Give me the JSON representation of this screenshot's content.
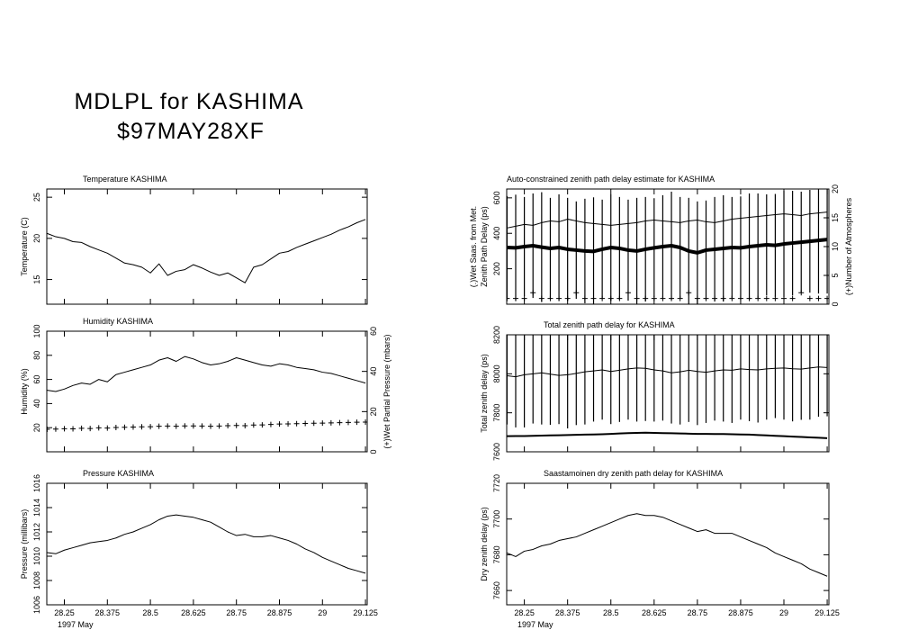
{
  "header": {
    "title": "MDLPL for KASHIMA",
    "subtitle": "$97MAY28XF"
  },
  "chart_data": [
    {
      "type": "line",
      "title": "Temperature    KASHIMA",
      "ylabel": [
        "Temperature (C)"
      ],
      "x": [
        28.2,
        28.225,
        28.25,
        28.275,
        28.3,
        28.325,
        28.35,
        28.375,
        28.4,
        28.425,
        28.45,
        28.475,
        28.5,
        28.525,
        28.55,
        28.575,
        28.6,
        28.625,
        28.65,
        28.675,
        28.7,
        28.725,
        28.75,
        28.775,
        28.8,
        28.825,
        28.85,
        28.875,
        28.9,
        28.925,
        28.95,
        28.975,
        29,
        29.025,
        29.05,
        29.075,
        29.1,
        29.125
      ],
      "xlim": [
        28.199,
        29.13
      ],
      "xticks": [
        28.25,
        28.375,
        28.5,
        28.625,
        28.75,
        28.875,
        29,
        29.125
      ],
      "ylim": [
        12,
        26
      ],
      "yticks": [
        15,
        20,
        25
      ],
      "series": [
        {
          "style": "line",
          "color": "#000000",
          "values": [
            20.6,
            20.2,
            20.0,
            19.6,
            19.5,
            19.0,
            18.6,
            18.2,
            17.6,
            17.0,
            16.8,
            16.5,
            15.8,
            16.9,
            15.5,
            16.0,
            16.2,
            16.8,
            16.4,
            15.9,
            15.5,
            15.8,
            15.2,
            14.6,
            16.5,
            16.8,
            17.5,
            18.2,
            18.4,
            18.9,
            19.3,
            19.7,
            20.1,
            20.5,
            21.0,
            21.4,
            21.9,
            22.3
          ]
        }
      ]
    },
    {
      "type": "line",
      "title": "Humidity     KASHIMA",
      "ylabel": [
        "Humidity (%)"
      ],
      "y2label": "(+)Wet Partial Pressure (mbars)",
      "x": [
        28.2,
        28.225,
        28.25,
        28.275,
        28.3,
        28.325,
        28.35,
        28.375,
        28.4,
        28.425,
        28.45,
        28.475,
        28.5,
        28.525,
        28.55,
        28.575,
        28.6,
        28.625,
        28.65,
        28.675,
        28.7,
        28.725,
        28.75,
        28.775,
        28.8,
        28.825,
        28.85,
        28.875,
        28.9,
        28.925,
        28.95,
        28.975,
        29,
        29.025,
        29.05,
        29.075,
        29.1,
        29.125
      ],
      "xlim": [
        28.199,
        29.13
      ],
      "xticks": [
        28.25,
        28.375,
        28.5,
        28.625,
        28.75,
        28.875,
        29,
        29.125
      ],
      "ylim": [
        0,
        100
      ],
      "yticks": [
        20,
        40,
        60,
        80,
        100
      ],
      "y2lim": [
        0,
        60
      ],
      "y2ticks": [
        0,
        20,
        40,
        60
      ],
      "series": [
        {
          "style": "line",
          "color": "#000000",
          "values": [
            51,
            50,
            52,
            55,
            57,
            56,
            60,
            58,
            64,
            66,
            68,
            70,
            72,
            76,
            78,
            75,
            79,
            77,
            74,
            72,
            73,
            75,
            78,
            76,
            74,
            72,
            71,
            73,
            72,
            70,
            69,
            68,
            66,
            65,
            63,
            61,
            59,
            57
          ]
        },
        {
          "style": "plus",
          "color": "#000000",
          "axis": "y2",
          "values": [
            11.2,
            11.3,
            11.5,
            11.4,
            11.7,
            11.6,
            11.9,
            11.8,
            12.1,
            12.2,
            12.3,
            12.4,
            12.5,
            12.7,
            12.8,
            12.7,
            12.9,
            12.9,
            12.8,
            12.7,
            12.8,
            13.0,
            13.1,
            13.0,
            13.3,
            13.4,
            13.6,
            13.8,
            13.9,
            14.0,
            14.1,
            14.2,
            14.3,
            14.4,
            14.5,
            14.6,
            14.7,
            14.8
          ]
        }
      ]
    },
    {
      "type": "line",
      "title": "Pressure     KASHIMA",
      "ylabel": [
        "Pressure (millibars)"
      ],
      "xlabel": "1997 May",
      "xtick_labels": true,
      "x": [
        28.2,
        28.225,
        28.25,
        28.275,
        28.3,
        28.325,
        28.35,
        28.375,
        28.4,
        28.425,
        28.45,
        28.475,
        28.5,
        28.525,
        28.55,
        28.575,
        28.6,
        28.625,
        28.65,
        28.675,
        28.7,
        28.725,
        28.75,
        28.775,
        28.8,
        28.825,
        28.85,
        28.875,
        28.9,
        28.925,
        28.95,
        28.975,
        29,
        29.025,
        29.05,
        29.075,
        29.1,
        29.125
      ],
      "xlim": [
        28.199,
        29.13
      ],
      "xticks": [
        28.25,
        28.375,
        28.5,
        28.625,
        28.75,
        28.875,
        29,
        29.125
      ],
      "ylim": [
        1006,
        1016
      ],
      "yticks": [
        1006,
        1008,
        1010,
        1012,
        1014,
        1016
      ],
      "series": [
        {
          "style": "line",
          "color": "#000000",
          "values": [
            1010.3,
            1010.2,
            1010.5,
            1010.7,
            1010.9,
            1011.1,
            1011.2,
            1011.3,
            1011.5,
            1011.8,
            1012.0,
            1012.3,
            1012.6,
            1013.0,
            1013.3,
            1013.4,
            1013.3,
            1013.2,
            1013.0,
            1012.8,
            1012.4,
            1012.0,
            1011.7,
            1011.8,
            1011.6,
            1011.6,
            1011.7,
            1011.5,
            1011.3,
            1011.0,
            1010.6,
            1010.3,
            1009.9,
            1009.6,
            1009.3,
            1009.0,
            1008.8,
            1008.6
          ]
        }
      ]
    },
    {
      "type": "line",
      "title": "Auto-constrained zenith path delay estimate for KASHIMA",
      "ylabel": [
        "(.)Wet Saas. from Met.",
        "Zenith Path Delay (ps)"
      ],
      "y2label": "(+)Number of Atmospheres",
      "x": [
        28.2,
        28.225,
        28.25,
        28.275,
        28.3,
        28.325,
        28.35,
        28.375,
        28.4,
        28.425,
        28.45,
        28.475,
        28.5,
        28.525,
        28.55,
        28.575,
        28.6,
        28.625,
        28.65,
        28.675,
        28.7,
        28.725,
        28.75,
        28.775,
        28.8,
        28.825,
        28.85,
        28.875,
        28.9,
        28.925,
        28.95,
        28.975,
        29,
        29.025,
        29.05,
        29.075,
        29.1,
        29.125
      ],
      "xlim": [
        28.199,
        29.13
      ],
      "xticks": [
        28.25,
        28.375,
        28.5,
        28.625,
        28.75,
        28.875,
        29,
        29.125
      ],
      "ylim": [
        0,
        650
      ],
      "yticks": [
        200,
        400,
        600
      ],
      "y2lim": [
        0,
        20
      ],
      "y2ticks": [
        0,
        5,
        10,
        15,
        20
      ],
      "series": [
        {
          "style": "errorbar",
          "color": "#000000",
          "linewidth": 4,
          "values": [
            320,
            318,
            325,
            330,
            322,
            315,
            320,
            310,
            305,
            300,
            298,
            310,
            320,
            315,
            305,
            300,
            310,
            318,
            325,
            330,
            320,
            300,
            290,
            305,
            310,
            315,
            320,
            318,
            325,
            330,
            335,
            332,
            340,
            345,
            350,
            355,
            360,
            365
          ],
          "errors": [
            290,
            300,
            280,
            295,
            310,
            285,
            300,
            290,
            275,
            295,
            305,
            280,
            300,
            290,
            285,
            300,
            295,
            280,
            290,
            305,
            285,
            300,
            290,
            280,
            295,
            300,
            285,
            290,
            300,
            295,
            285,
            290,
            300,
            295,
            285,
            290,
            300,
            305
          ]
        },
        {
          "style": "line",
          "color": "#000000",
          "linewidth": 1,
          "values": [
            430,
            440,
            450,
            445,
            460,
            470,
            465,
            480,
            470,
            460,
            455,
            450,
            445,
            450,
            455,
            460,
            470,
            475,
            470,
            465,
            460,
            470,
            475,
            465,
            460,
            470,
            480,
            485,
            490,
            495,
            500,
            505,
            510,
            505,
            500,
            510,
            515,
            520
          ]
        },
        {
          "style": "plus",
          "color": "#000000",
          "axis": "y2",
          "values": [
            1,
            1,
            1,
            2,
            1,
            1,
            1,
            1,
            2,
            1,
            1,
            1,
            1,
            1,
            2,
            1,
            1,
            1,
            1,
            1,
            1,
            2,
            1,
            1,
            1,
            1,
            1,
            1,
            1,
            1,
            1,
            1,
            1,
            1,
            2,
            1,
            1,
            1
          ]
        }
      ]
    },
    {
      "type": "line",
      "title": "Total zenith path delay for KASHIMA",
      "ylabel": [
        "Total zenith delay (ps)"
      ],
      "x": [
        28.2,
        28.225,
        28.25,
        28.275,
        28.3,
        28.325,
        28.35,
        28.375,
        28.4,
        28.425,
        28.45,
        28.475,
        28.5,
        28.525,
        28.55,
        28.575,
        28.6,
        28.625,
        28.65,
        28.675,
        28.7,
        28.725,
        28.75,
        28.775,
        28.8,
        28.825,
        28.85,
        28.875,
        28.9,
        28.925,
        28.95,
        28.975,
        29,
        29.025,
        29.05,
        29.075,
        29.1,
        29.125
      ],
      "xlim": [
        28.199,
        29.13
      ],
      "xticks": [
        28.25,
        28.375,
        28.5,
        28.625,
        28.75,
        28.875,
        29,
        29.125
      ],
      "ylim": [
        7600,
        8200
      ],
      "yticks": [
        7600,
        7800,
        8000,
        8200
      ],
      "series": [
        {
          "style": "errorbar",
          "color": "#000000",
          "linewidth": 1,
          "values": [
            7990,
            7985,
            7995,
            8000,
            8005,
            7998,
            7992,
            7995,
            8002,
            8010,
            8015,
            8020,
            8012,
            8018,
            8025,
            8030,
            8028,
            8020,
            8015,
            8005,
            8010,
            8018,
            8012,
            8008,
            8015,
            8020,
            8018,
            8025,
            8022,
            8020,
            8025,
            8028,
            8030,
            8026,
            8024,
            8030,
            8035,
            8032
          ],
          "errors": [
            250,
            260,
            270,
            255,
            265,
            260,
            250,
            275,
            265,
            270,
            260,
            255,
            270,
            265,
            260,
            275,
            270,
            265,
            255,
            260,
            270,
            265,
            275,
            260,
            255,
            265,
            270,
            260,
            265,
            270,
            260,
            255,
            265,
            270,
            260,
            265,
            255,
            250
          ]
        },
        {
          "style": "line",
          "color": "#000000",
          "linewidth": 2,
          "values": [
            7680,
            7681,
            7681,
            7682,
            7683,
            7684,
            7685,
            7686,
            7687,
            7688,
            7689,
            7690,
            7692,
            7694,
            7696,
            7697,
            7698,
            7697,
            7696,
            7695,
            7694,
            7693,
            7692,
            7692,
            7691,
            7691,
            7690,
            7689,
            7688,
            7686,
            7684,
            7682,
            7680,
            7678,
            7676,
            7674,
            7672,
            7670
          ]
        }
      ]
    },
    {
      "type": "line",
      "title": "Saastamoinen dry zenith path delay for KASHIMA",
      "ylabel": [
        "Dry zenith delay (ps)"
      ],
      "xlabel": "1997 May",
      "xtick_labels": true,
      "x": [
        28.2,
        28.225,
        28.25,
        28.275,
        28.3,
        28.325,
        28.35,
        28.375,
        28.4,
        28.425,
        28.45,
        28.475,
        28.5,
        28.525,
        28.55,
        28.575,
        28.6,
        28.625,
        28.65,
        28.675,
        28.7,
        28.725,
        28.75,
        28.775,
        28.8,
        28.825,
        28.85,
        28.875,
        28.9,
        28.925,
        28.95,
        28.975,
        29,
        29.025,
        29.05,
        29.075,
        29.1,
        29.125
      ],
      "xlim": [
        28.199,
        29.13
      ],
      "xticks": [
        28.25,
        28.375,
        28.5,
        28.625,
        28.75,
        28.875,
        29,
        29.125
      ],
      "ylim": [
        7652,
        7720
      ],
      "yticks": [
        7660,
        7680,
        7700,
        7720
      ],
      "series": [
        {
          "style": "line",
          "color": "#000000",
          "values": [
            7681,
            7679,
            7682,
            7683,
            7685,
            7686,
            7688,
            7689,
            7690,
            7692,
            7694,
            7696,
            7698,
            7700,
            7702,
            7703,
            7702,
            7702,
            7701,
            7699,
            7697,
            7695,
            7693,
            7694,
            7692,
            7692,
            7692,
            7690,
            7688,
            7686,
            7684,
            7681,
            7679,
            7677,
            7675,
            7672,
            7670,
            7668
          ]
        }
      ]
    }
  ]
}
